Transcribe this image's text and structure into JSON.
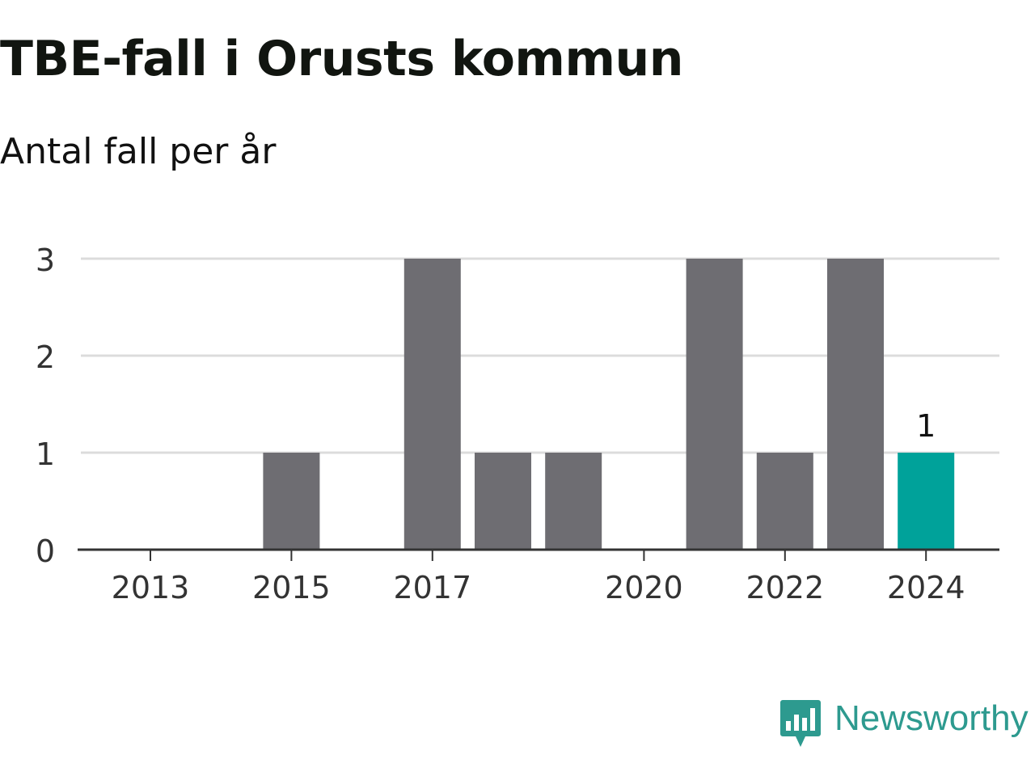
{
  "header": {
    "title": "TBE-fall i Orusts kommun",
    "subtitle": "Antal fall per år"
  },
  "brand": {
    "name": "Newsworthy",
    "icon": "newsworthy-logo-icon",
    "color": "#2d9a8f"
  },
  "chart_data": {
    "type": "bar",
    "categories": [
      "2013",
      "2014",
      "2015",
      "2016",
      "2017",
      "2018",
      "2019",
      "2020",
      "2021",
      "2022",
      "2023",
      "2024"
    ],
    "values": [
      0,
      0,
      1,
      0,
      3,
      1,
      1,
      0,
      3,
      1,
      3,
      1
    ],
    "x_tick_labels": [
      "2013",
      "2015",
      "2017",
      "2020",
      "2022",
      "2024"
    ],
    "y_ticks": [
      "0",
      "1",
      "2",
      "3"
    ],
    "ylim": [
      0,
      3
    ],
    "grid": true,
    "bar_color": "#6e6d72",
    "highlight_color": "#00a29a",
    "highlight_category": "2024",
    "data_labels": [
      {
        "category": "2024",
        "text": "1"
      }
    ],
    "title": "TBE-fall i Orusts kommun",
    "subtitle": "Antal fall per år",
    "xlabel": "",
    "ylabel": ""
  }
}
